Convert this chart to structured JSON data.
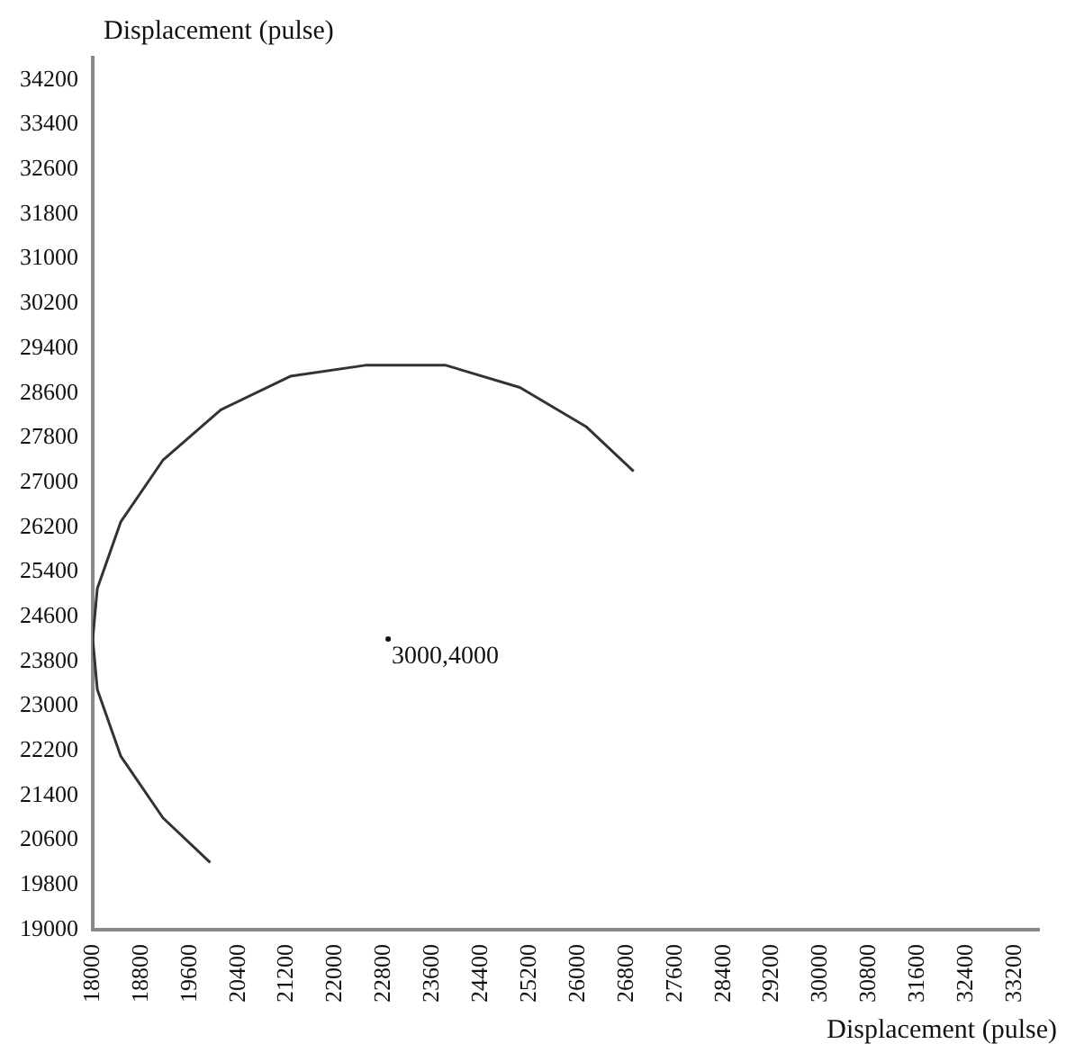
{
  "chart_data": {
    "type": "line",
    "xlabel": "Displacement (pulse)",
    "ylabel": "Displacement (pulse)",
    "x": [
      19937,
      19158,
      18464,
      18075,
      18000,
      18075,
      18464,
      19158,
      20111,
      21257,
      22519,
      23810,
      25042,
      26132,
      26917
    ],
    "series": [
      {
        "color": "#333333",
        "values": [
          20200,
          21000,
          22100,
          23300,
          24200,
          25100,
          26300,
          27400,
          28300,
          28900,
          29100,
          29100,
          28700,
          28000,
          27200
        ]
      }
    ],
    "xlim": [
      18000,
      33600
    ],
    "xticks": [
      18000,
      18800,
      19600,
      20400,
      21200,
      22000,
      22800,
      23600,
      24400,
      25200,
      26000,
      26800,
      27600,
      28400,
      29200,
      30000,
      30800,
      31600,
      32400,
      33200
    ],
    "ylim": [
      19000,
      34600
    ],
    "yticks": [
      19000,
      19800,
      20600,
      21400,
      22200,
      23000,
      23800,
      24600,
      25400,
      26200,
      27000,
      27800,
      28600,
      29400,
      30200,
      31000,
      31800,
      32600,
      33400,
      34200
    ],
    "annotations": [
      {
        "text": "3000,4000",
        "x": 22870,
        "y": 24200
      }
    ],
    "grid": false,
    "legend": false,
    "marker": "none",
    "line_style": "solid"
  }
}
